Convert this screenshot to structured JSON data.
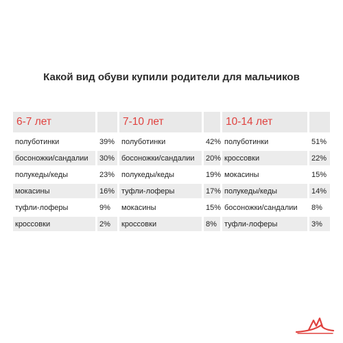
{
  "chart_data": {
    "type": "table",
    "title": "Какой вид обуви купили родители для мальчиков",
    "groups": [
      {
        "age": "6-7 лет",
        "rows": [
          {
            "item": "полуботинки",
            "value": "39%"
          },
          {
            "item": "босоножки/сандалии",
            "value": "30%"
          },
          {
            "item": "полукеды/кеды",
            "value": "23%"
          },
          {
            "item": "мокасины",
            "value": "16%"
          },
          {
            "item": "туфли-лоферы",
            "value": "9%"
          },
          {
            "item": "кроссовки",
            "value": "2%"
          }
        ]
      },
      {
        "age": "7-10 лет",
        "rows": [
          {
            "item": "полуботинки",
            "value": "42%"
          },
          {
            "item": "босоножки/сандалии",
            "value": "20%"
          },
          {
            "item": "полукеды/кеды",
            "value": "19%"
          },
          {
            "item": "туфли-лоферы",
            "value": "17%"
          },
          {
            "item": "мокасины",
            "value": "15%"
          },
          {
            "item": "кроссовки",
            "value": "8%"
          }
        ]
      },
      {
        "age": "10-14 лет",
        "rows": [
          {
            "item": "полуботинки",
            "value": "51%"
          },
          {
            "item": "кроссовки",
            "value": "22%"
          },
          {
            "item": "мокасины",
            "value": "15%"
          },
          {
            "item": "полукеды/кеды",
            "value": "14%"
          },
          {
            "item": "босоножки/сандалии",
            "value": "8%"
          },
          {
            "item": "туфли-лоферы",
            "value": "3%"
          }
        ]
      }
    ]
  },
  "colors": {
    "accent": "#e0423f",
    "header_bg": "#e9e9e9",
    "stripe_bg": "#ececec",
    "text": "#222222"
  },
  "logo": {
    "icon": "shoe-logo-icon"
  }
}
